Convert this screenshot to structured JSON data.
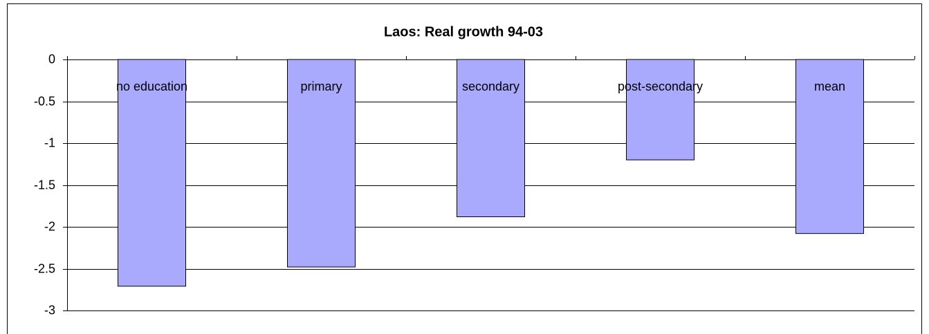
{
  "chart_data": {
    "type": "bar",
    "title": "Laos: Real growth 94-03",
    "categories": [
      "no education",
      "primary",
      "secondary",
      "post-secondary",
      "mean"
    ],
    "values": [
      -2.71,
      -2.48,
      -1.88,
      -1.2,
      -2.08
    ],
    "color": "#a9a9fd",
    "ylim": [
      -3,
      0
    ],
    "yticks": [
      0,
      -0.5,
      -1,
      -1.5,
      -2,
      -2.5,
      -3
    ],
    "grid": true
  }
}
